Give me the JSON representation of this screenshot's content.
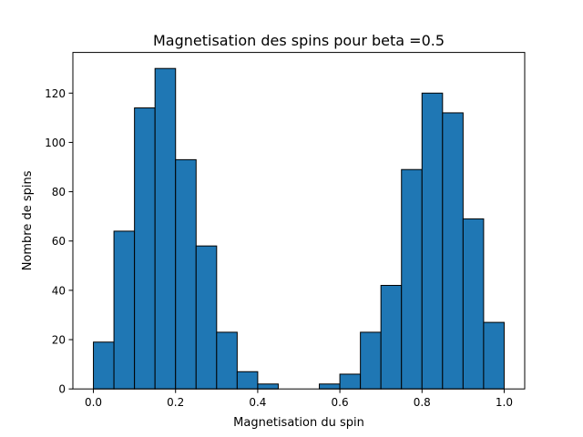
{
  "chart_data": {
    "type": "bar",
    "subtype": "histogram",
    "title": "Magnetisation des spins pour beta =0.5",
    "xlabel": "Magnetisation du spin",
    "ylabel": "Nombre de spins",
    "xlim": [
      -0.05,
      1.05
    ],
    "ylim": [
      0,
      136.5
    ],
    "xticks": [
      "0.0",
      "0.2",
      "0.4",
      "0.6",
      "0.8",
      "1.0"
    ],
    "yticks": [
      "0",
      "20",
      "40",
      "60",
      "80",
      "100",
      "120"
    ],
    "bin_edges": [
      0.0,
      0.05,
      0.1,
      0.15,
      0.2,
      0.25,
      0.3,
      0.35,
      0.4,
      0.45,
      0.5,
      0.55,
      0.6,
      0.65,
      0.7,
      0.75,
      0.8,
      0.85,
      0.9,
      0.95,
      1.0
    ],
    "values": [
      19,
      64,
      114,
      130,
      93,
      58,
      23,
      7,
      2,
      0,
      0,
      2,
      6,
      23,
      42,
      89,
      120,
      112,
      69,
      27
    ],
    "bar_color": "#1f77b4",
    "edge_color": "#000000",
    "grid": false,
    "legend": false
  }
}
